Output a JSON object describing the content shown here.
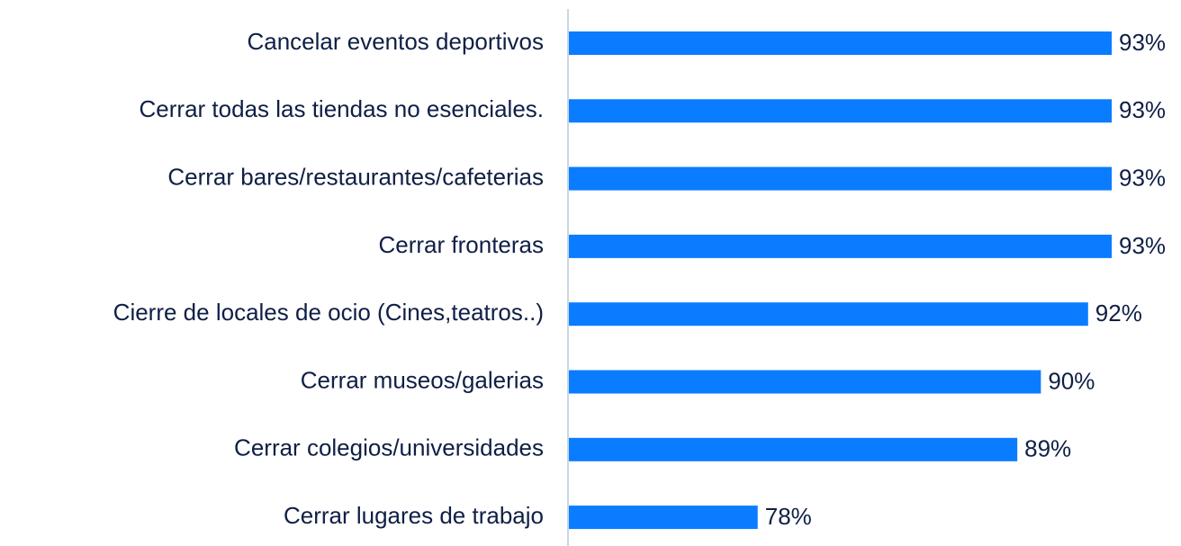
{
  "chart_data": {
    "type": "bar",
    "orientation": "horizontal",
    "categories": [
      "Cancelar eventos deportivos",
      "Cerrar todas las tiendas no esenciales.",
      "Cerrar bares/restaurantes/cafeterias",
      "Cerrar fronteras",
      "Cierre de locales de ocio (Cines,teatros..)",
      "Cerrar museos/galerias",
      "Cerrar colegios/universidades",
      "Cerrar lugares de trabajo"
    ],
    "values": [
      93,
      93,
      93,
      93,
      92,
      90,
      89,
      78
    ],
    "value_labels": [
      "93%",
      "93%",
      "93%",
      "93%",
      "92%",
      "90%",
      "89%",
      "78%"
    ],
    "color": "#0a7cff",
    "xlim": [
      70,
      93
    ]
  }
}
